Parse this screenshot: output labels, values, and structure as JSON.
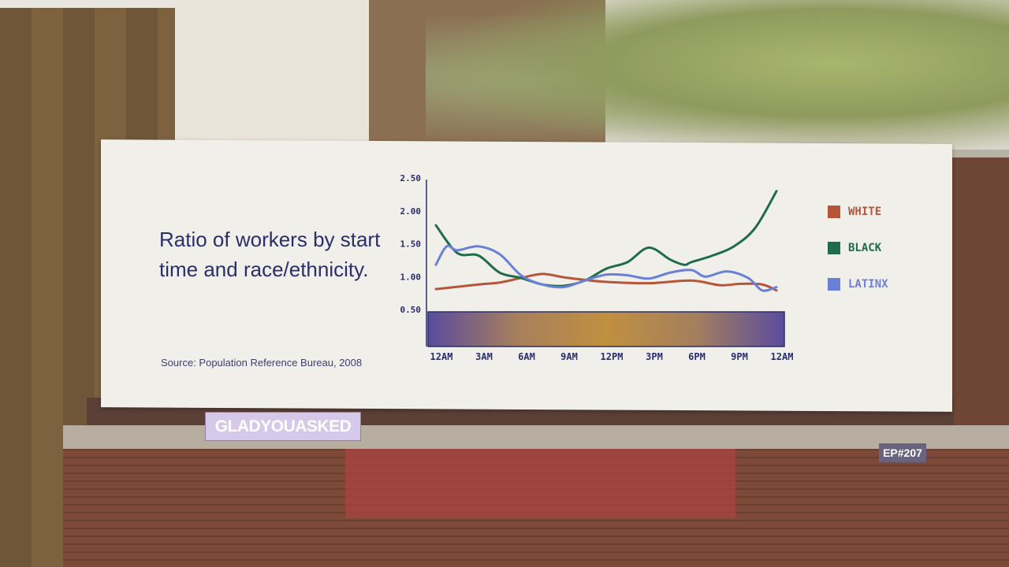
{
  "billboard": {
    "title": "Ratio of workers by start time and race/ethnicity.",
    "source": "Source: Population Reference Bureau, 2008"
  },
  "overlay": {
    "show_logo": "GLADYOUASKED",
    "episode": "EP#207"
  },
  "chart_data": {
    "type": "line",
    "title": "Ratio of workers by start time and race/ethnicity.",
    "xlabel": "",
    "ylabel": "",
    "x_unit": "hours after 12AM",
    "xlim": [
      0,
      24
    ],
    "ylim": [
      0.5,
      2.5
    ],
    "y_ticks": [
      "2.50",
      "2.00",
      "1.50",
      "1.00",
      "0.50"
    ],
    "y_tick_values": [
      2.5,
      2.0,
      1.5,
      1.0,
      0.5
    ],
    "x_ticks": [
      "12AM",
      "3AM",
      "6AM",
      "9AM",
      "12PM",
      "3PM",
      "6PM",
      "9PM",
      "12AM"
    ],
    "x_tick_values": [
      0,
      3,
      6,
      9,
      12,
      15,
      18,
      21,
      24
    ],
    "grid": false,
    "legend_position": "right",
    "time_band_colors": [
      "#5a4c9e",
      "#c0903f",
      "#5a4c9e"
    ],
    "series": [
      {
        "name": "WHITE",
        "color": "#b5553a",
        "x": [
          0,
          3,
          4.5,
          6,
          7.5,
          9,
          10.5,
          12,
          15,
          18,
          20,
          21.5,
          23,
          24
        ],
        "y": [
          0.81,
          0.88,
          0.91,
          0.98,
          1.04,
          0.99,
          0.95,
          0.92,
          0.9,
          0.94,
          0.87,
          0.89,
          0.88,
          0.79
        ]
      },
      {
        "name": "BLACK",
        "color": "#1f6b4c",
        "x": [
          0,
          1.5,
          3,
          4.5,
          6,
          7.5,
          9,
          10.5,
          12,
          13.5,
          15,
          16.5,
          17.5,
          18,
          19.5,
          21,
          22.5,
          24
        ],
        "y": [
          1.78,
          1.36,
          1.32,
          1.06,
          0.98,
          0.88,
          0.86,
          0.94,
          1.12,
          1.22,
          1.44,
          1.26,
          1.18,
          1.22,
          1.32,
          1.46,
          1.74,
          2.3
        ]
      },
      {
        "name": "LATINX",
        "color": "#6a80d6",
        "x": [
          0,
          0.75,
          1.5,
          3,
          4.5,
          6,
          7.5,
          9,
          10.5,
          12,
          13.5,
          15,
          16.5,
          18,
          19,
          20.5,
          22,
          23,
          24
        ],
        "y": [
          1.18,
          1.46,
          1.4,
          1.46,
          1.34,
          1.02,
          0.88,
          0.84,
          0.94,
          1.03,
          1.02,
          0.97,
          1.06,
          1.1,
          1.0,
          1.08,
          0.98,
          0.79,
          0.84
        ]
      }
    ]
  }
}
